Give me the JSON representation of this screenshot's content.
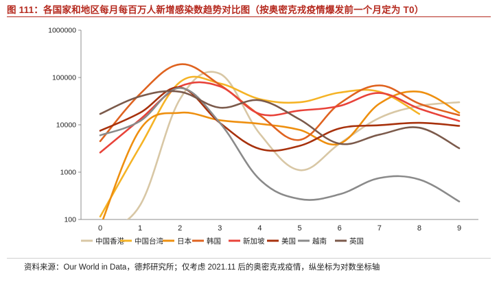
{
  "title": "图 111：各国家和地区每月每百万人新增感染数趋势对比图（按奥密克戎疫情爆发前一个月定为 T0）",
  "source": "资料来源：Our World in Data，德邦研究所；仅考虑 2021.11 后的奥密克戎疫情，纵坐标为对数坐标轴",
  "colors": {
    "title": "#b5291e",
    "axis": "#8c8c8c"
  },
  "chart_data": {
    "type": "line",
    "title": "各国家和地区每月每百万人新增感染数趋势对比图",
    "xlabel": "",
    "ylabel": "",
    "yscale": "log",
    "ylim": [
      100,
      1000000
    ],
    "y_ticks": [
      100,
      1000,
      10000,
      100000,
      1000000
    ],
    "y_tick_labels": [
      "100",
      "1000",
      "10000",
      "100000",
      "1000000"
    ],
    "x": [
      0,
      1,
      2,
      3,
      4,
      5,
      6,
      7,
      8,
      9
    ],
    "x_tick_labels": [
      "0",
      "1",
      "2",
      "3",
      "4",
      "5",
      "6",
      "7",
      "8",
      "9"
    ],
    "legend_position": "bottom",
    "series": [
      {
        "name": "中国香港",
        "color": "#d8c7a5",
        "values": [
          55,
          200,
          35000,
          120000,
          6500,
          1100,
          4000,
          14000,
          25000,
          30000
        ]
      },
      {
        "name": "中国台湾",
        "color": "#f5b325",
        "values": [
          115,
          3500,
          80000,
          75000,
          35000,
          30000,
          48000,
          50000,
          17000,
          null
        ]
      },
      {
        "name": "日本",
        "color": "#ee8f0f",
        "values": [
          70,
          8000,
          18000,
          12500,
          10500,
          7800,
          4000,
          28000,
          50000,
          18000
        ]
      },
      {
        "name": "韩国",
        "color": "#df6320",
        "values": [
          4500,
          45000,
          190000,
          70000,
          16000,
          4800,
          28000,
          68000,
          28000,
          16000
        ]
      },
      {
        "name": "新加坡",
        "color": "#e8433a",
        "values": [
          2600,
          13000,
          65000,
          65000,
          17000,
          20000,
          25000,
          47000,
          22000,
          12000
        ]
      },
      {
        "name": "美国",
        "color": "#a7310c",
        "values": [
          7500,
          18000,
          62000,
          11000,
          3100,
          3600,
          8400,
          9800,
          11000,
          9500
        ]
      },
      {
        "name": "越南",
        "color": "#8a8a8a",
        "values": [
          6000,
          12000,
          60000,
          11000,
          700,
          270,
          340,
          750,
          700,
          240
        ]
      },
      {
        "name": "英国",
        "color": "#7b5a4b",
        "values": [
          17000,
          40000,
          50000,
          23000,
          33000,
          13000,
          4000,
          6200,
          8700,
          3200
        ]
      }
    ]
  }
}
